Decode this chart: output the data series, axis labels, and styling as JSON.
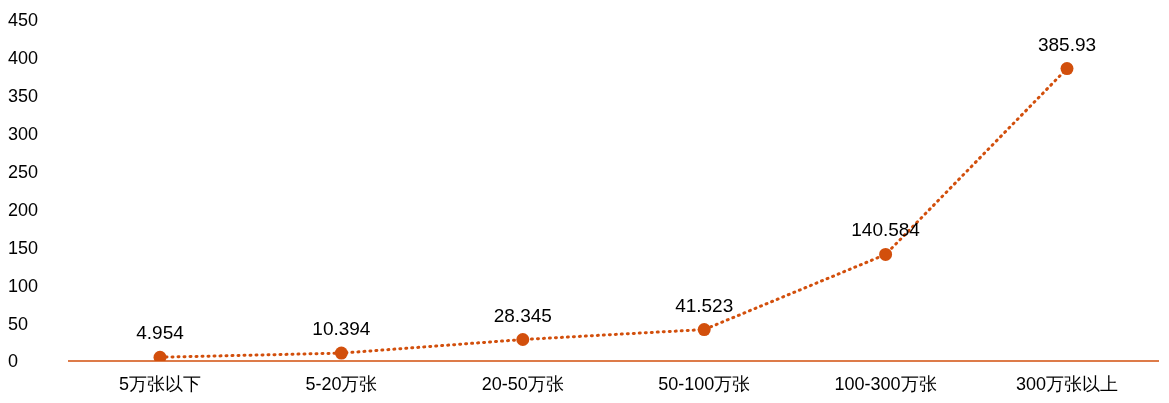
{
  "chart_data": {
    "type": "line",
    "categories": [
      "5万张以下",
      "5-20万张",
      "20-50万张",
      "50-100万张",
      "100-300万张",
      "300万张以上"
    ],
    "values": [
      4.954,
      10.394,
      28.345,
      41.523,
      140.584,
      385.93
    ],
    "color": "#d24f0c",
    "ylim": [
      0,
      450
    ],
    "yticks": [
      0,
      50,
      100,
      150,
      200,
      250,
      300,
      350,
      400,
      450
    ],
    "grid": false,
    "legend": false,
    "marker": "circle",
    "line_style": "dotted",
    "data_labels": true
  }
}
